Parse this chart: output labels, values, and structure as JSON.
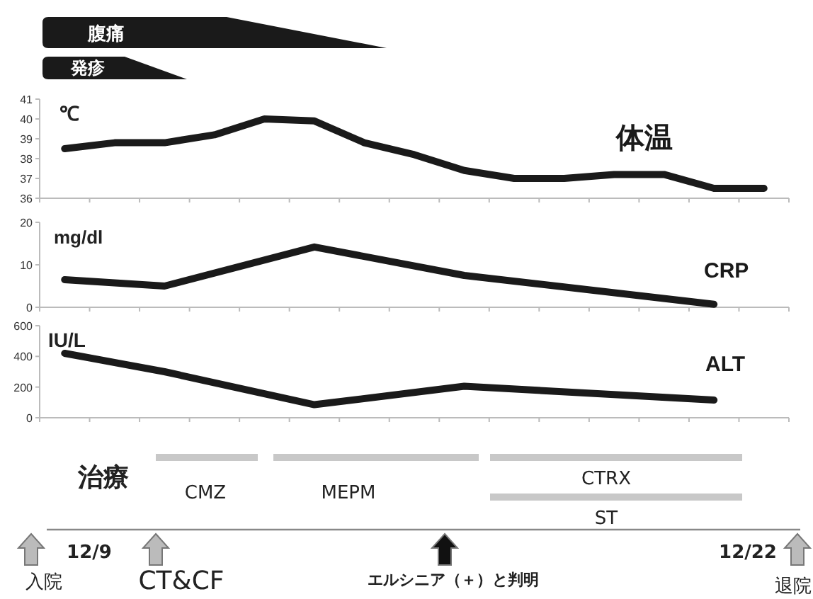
{
  "chart_data": [
    {
      "type": "other",
      "annotations": [
        "腹痛",
        "発疹"
      ]
    },
    {
      "type": "line",
      "ylabel": "℃",
      "categories": [
        null,
        null,
        null,
        null,
        null,
        null,
        null,
        null,
        null,
        null,
        null,
        null,
        null,
        null,
        null
      ],
      "ylim": [
        36,
        41
      ],
      "yticks": [
        36,
        37,
        38,
        39,
        40,
        41
      ],
      "tick_labels": "y",
      "series": [
        {
          "name": "体温",
          "color": "#1a1a1a",
          "values": [
            38.5,
            38.8,
            38.8,
            39.2,
            40.0,
            39.9,
            38.8,
            38.2,
            37.4,
            37.0,
            37.0,
            37.2,
            37.2,
            36.5,
            36.5
          ]
        }
      ]
    },
    {
      "type": "line",
      "ylabel": "mg/dl",
      "categories": [
        null,
        null,
        null,
        null,
        null,
        null,
        null,
        null,
        null,
        null,
        null,
        null,
        null,
        null,
        null
      ],
      "ylim": [
        0,
        20
      ],
      "yticks": [
        0,
        10,
        20
      ],
      "tick_labels": "y",
      "series": [
        {
          "name": "CRP",
          "color": "#1a1a1a",
          "values": [
            6.5,
            null,
            5.0,
            null,
            null,
            14.2,
            null,
            null,
            7.5,
            null,
            null,
            null,
            null,
            0.7,
            null
          ]
        }
      ]
    },
    {
      "type": "line",
      "ylabel": "IU/L",
      "categories": [
        null,
        null,
        null,
        null,
        null,
        null,
        null,
        null,
        null,
        null,
        null,
        null,
        null,
        null,
        null
      ],
      "ylim": [
        0,
        600
      ],
      "yticks": [
        0,
        200,
        400,
        600
      ],
      "tick_labels": "y",
      "series": [
        {
          "name": "ALT",
          "color": "#1a1a1a",
          "values": [
            420,
            null,
            300,
            null,
            null,
            85,
            null,
            null,
            205,
            null,
            null,
            null,
            null,
            115,
            null
          ]
        }
      ]
    },
    {
      "type": "other",
      "annotations": [
        "治療",
        "CMZ",
        "MEPM",
        "CTRX",
        "ST",
        "12/9",
        "12/22",
        "入院",
        "CT&CF",
        "エルシニア（＋）と判明",
        "退院"
      ]
    }
  ]
}
